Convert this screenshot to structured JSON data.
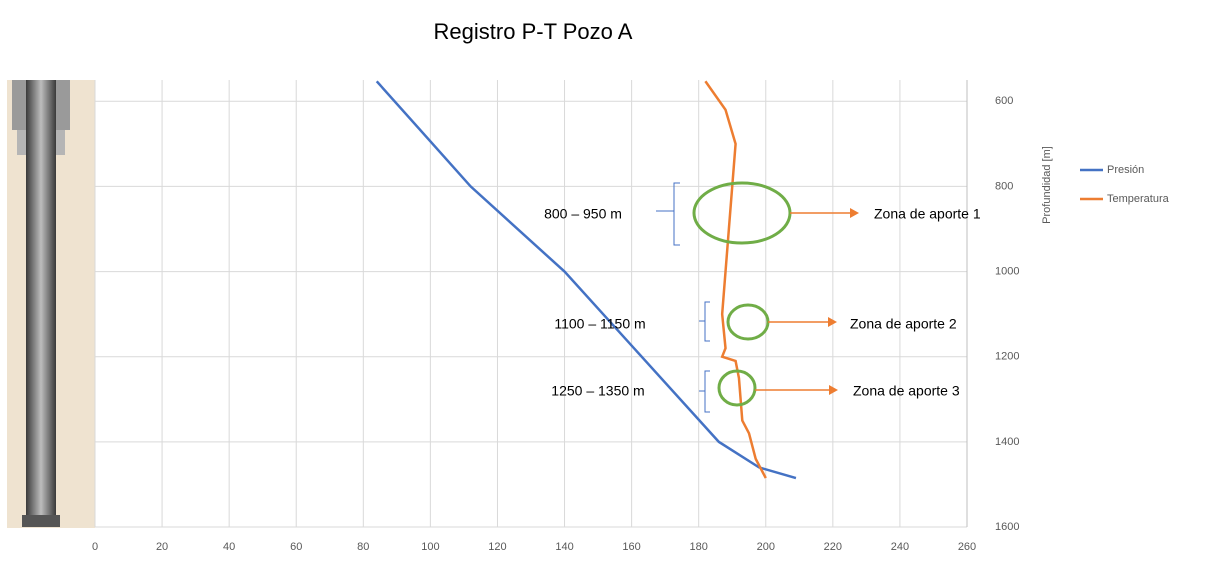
{
  "chart_data": {
    "type": "line",
    "title": "Registro P-T Pozo A",
    "y_axis_label": "Profundidad [m]",
    "xlim": [
      0,
      260
    ],
    "xticks": [
      0,
      20,
      40,
      60,
      80,
      100,
      120,
      140,
      160,
      180,
      200,
      220,
      240,
      260
    ],
    "ylim": [
      550,
      1600
    ],
    "yticks": [
      600,
      800,
      1000,
      1200,
      1400,
      1600
    ],
    "y_inverted": true,
    "grid": true,
    "legend": "right",
    "series": [
      {
        "name": "Presión",
        "color": "#4472c4",
        "x": [
          84,
          112,
          140,
          163,
          186,
          198,
          209
        ],
        "y": [
          553,
          800,
          1000,
          1200,
          1400,
          1460,
          1485
        ]
      },
      {
        "name": "Temperatura",
        "color": "#ed7d31",
        "x": [
          182,
          188,
          191,
          190,
          189,
          188,
          187,
          188,
          187,
          191,
          192,
          193,
          195,
          197,
          200
        ],
        "y": [
          553,
          620,
          700,
          800,
          900,
          1000,
          1100,
          1180,
          1200,
          1210,
          1250,
          1350,
          1380,
          1440,
          1485
        ]
      }
    ],
    "annotations": [
      "800 – 950 m",
      "Zona de aporte 1",
      "1100 – 1150 m",
      "Zona de aporte 2",
      "1250 – 1350 m",
      "Zona de aporte 3"
    ]
  }
}
